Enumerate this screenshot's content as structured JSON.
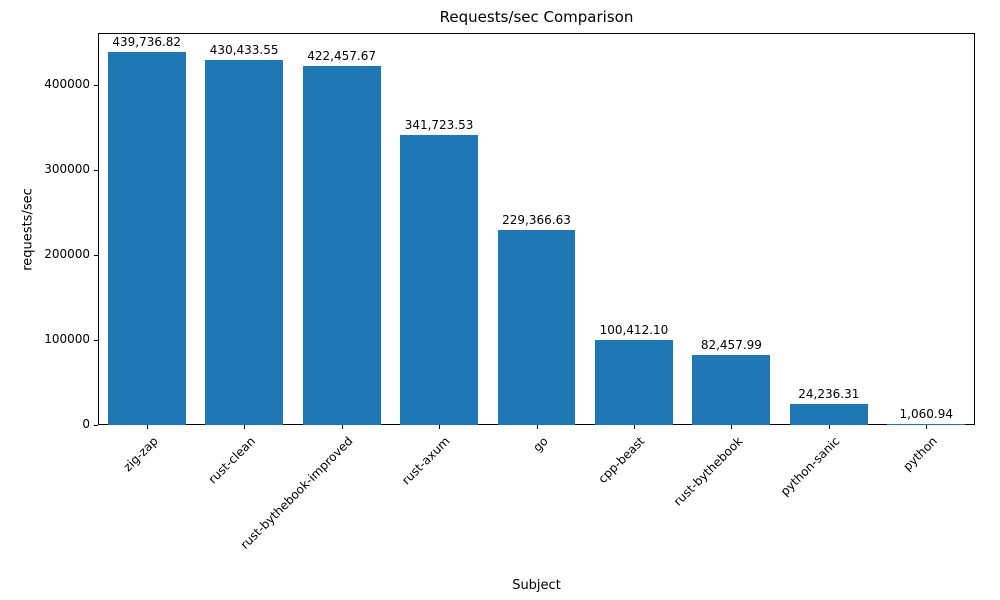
{
  "chart_data": {
    "type": "bar",
    "title": "Requests/sec Comparison",
    "xlabel": "Subject",
    "ylabel": "requests/sec",
    "categories": [
      "zig-zap",
      "rust-clean",
      "rust-bythebook-improved",
      "rust-axum",
      "go",
      "cpp-beast",
      "rust-bythebook",
      "python-sanic",
      "python"
    ],
    "values": [
      439736.82,
      430433.55,
      422457.67,
      341723.53,
      229366.63,
      100412.1,
      82457.99,
      24236.31,
      1060.94
    ],
    "value_labels": [
      "439,736.82",
      "430,433.55",
      "422,457.67",
      "341,723.53",
      "229,366.63",
      "100,412.10",
      "82,457.99",
      "24,236.31",
      "1,060.94"
    ],
    "yticks": [
      0,
      100000,
      200000,
      300000,
      400000
    ],
    "ytick_labels": [
      "0",
      "100000",
      "200000",
      "300000",
      "400000"
    ],
    "ylim": [
      0,
      461724
    ],
    "bar_color": "#1f77b4",
    "grid": false,
    "legend_position": "none"
  }
}
